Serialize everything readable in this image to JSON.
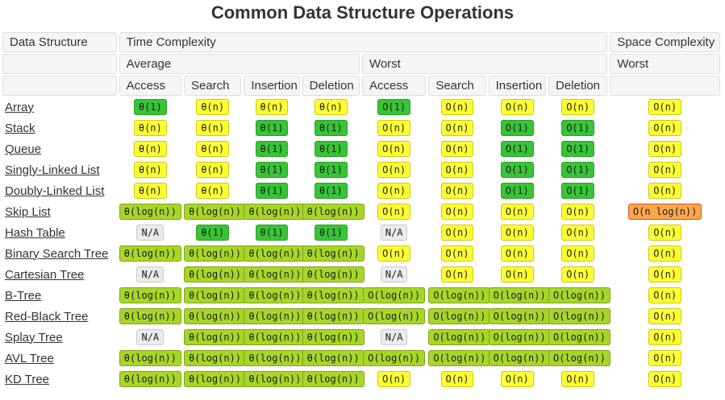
{
  "title": "Common Data Structure Operations",
  "colors": {
    "green": {
      "bg": "#38c437",
      "border": "#2d9e2c"
    },
    "yellowgreen": {
      "bg": "#a7d629",
      "border": "#7fa51a"
    },
    "yellow": {
      "bg": "#fdff32",
      "border": "#c9c921"
    },
    "orange": {
      "bg": "#fba84c",
      "border": "#e0472c"
    },
    "gray": {
      "bg": "#ebebeb",
      "border": "#cccccc"
    }
  },
  "table": {
    "header": {
      "data_structure": "Data Structure",
      "time_complexity": "Time Complexity",
      "space_complexity": "Space Complexity",
      "average": "Average",
      "worst": "Worst",
      "space_worst": "Worst",
      "operations": [
        "Access",
        "Search",
        "Insertion",
        "Deletion"
      ]
    },
    "rows": [
      {
        "label": "Array",
        "cells": [
          {
            "text": "θ(1)",
            "color": "green"
          },
          {
            "text": "θ(n)",
            "color": "yellow"
          },
          {
            "text": "θ(n)",
            "color": "yellow"
          },
          {
            "text": "θ(n)",
            "color": "yellow"
          },
          {
            "text": "O(1)",
            "color": "green"
          },
          {
            "text": "O(n)",
            "color": "yellow"
          },
          {
            "text": "O(n)",
            "color": "yellow"
          },
          {
            "text": "O(n)",
            "color": "yellow"
          },
          {
            "text": "O(n)",
            "color": "yellow"
          }
        ]
      },
      {
        "label": "Stack",
        "cells": [
          {
            "text": "θ(n)",
            "color": "yellow"
          },
          {
            "text": "θ(n)",
            "color": "yellow"
          },
          {
            "text": "θ(1)",
            "color": "green"
          },
          {
            "text": "θ(1)",
            "color": "green"
          },
          {
            "text": "O(n)",
            "color": "yellow"
          },
          {
            "text": "O(n)",
            "color": "yellow"
          },
          {
            "text": "O(1)",
            "color": "green"
          },
          {
            "text": "O(1)",
            "color": "green"
          },
          {
            "text": "O(n)",
            "color": "yellow"
          }
        ]
      },
      {
        "label": "Queue",
        "cells": [
          {
            "text": "θ(n)",
            "color": "yellow"
          },
          {
            "text": "θ(n)",
            "color": "yellow"
          },
          {
            "text": "θ(1)",
            "color": "green"
          },
          {
            "text": "θ(1)",
            "color": "green"
          },
          {
            "text": "O(n)",
            "color": "yellow"
          },
          {
            "text": "O(n)",
            "color": "yellow"
          },
          {
            "text": "O(1)",
            "color": "green"
          },
          {
            "text": "O(1)",
            "color": "green"
          },
          {
            "text": "O(n)",
            "color": "yellow"
          }
        ]
      },
      {
        "label": "Singly-Linked List",
        "cells": [
          {
            "text": "θ(n)",
            "color": "yellow"
          },
          {
            "text": "θ(n)",
            "color": "yellow"
          },
          {
            "text": "θ(1)",
            "color": "green"
          },
          {
            "text": "θ(1)",
            "color": "green"
          },
          {
            "text": "O(n)",
            "color": "yellow"
          },
          {
            "text": "O(n)",
            "color": "yellow"
          },
          {
            "text": "O(1)",
            "color": "green"
          },
          {
            "text": "O(1)",
            "color": "green"
          },
          {
            "text": "O(n)",
            "color": "yellow"
          }
        ]
      },
      {
        "label": "Doubly-Linked List",
        "cells": [
          {
            "text": "θ(n)",
            "color": "yellow"
          },
          {
            "text": "θ(n)",
            "color": "yellow"
          },
          {
            "text": "θ(1)",
            "color": "green"
          },
          {
            "text": "θ(1)",
            "color": "green"
          },
          {
            "text": "O(n)",
            "color": "yellow"
          },
          {
            "text": "O(n)",
            "color": "yellow"
          },
          {
            "text": "O(1)",
            "color": "green"
          },
          {
            "text": "O(1)",
            "color": "green"
          },
          {
            "text": "O(n)",
            "color": "yellow"
          }
        ]
      },
      {
        "label": "Skip List",
        "cells": [
          {
            "text": "θ(log(n))",
            "color": "yellowgreen"
          },
          {
            "text": "θ(log(n))",
            "color": "yellowgreen"
          },
          {
            "text": "θ(log(n))",
            "color": "yellowgreen"
          },
          {
            "text": "θ(log(n))",
            "color": "yellowgreen"
          },
          {
            "text": "O(n)",
            "color": "yellow"
          },
          {
            "text": "O(n)",
            "color": "yellow"
          },
          {
            "text": "O(n)",
            "color": "yellow"
          },
          {
            "text": "O(n)",
            "color": "yellow"
          },
          {
            "text": "O(n log(n))",
            "color": "orange"
          }
        ]
      },
      {
        "label": "Hash Table",
        "cells": [
          {
            "text": "N/A",
            "color": "gray"
          },
          {
            "text": "θ(1)",
            "color": "green"
          },
          {
            "text": "θ(1)",
            "color": "green"
          },
          {
            "text": "θ(1)",
            "color": "green"
          },
          {
            "text": "N/A",
            "color": "gray"
          },
          {
            "text": "O(n)",
            "color": "yellow"
          },
          {
            "text": "O(n)",
            "color": "yellow"
          },
          {
            "text": "O(n)",
            "color": "yellow"
          },
          {
            "text": "O(n)",
            "color": "yellow"
          }
        ]
      },
      {
        "label": "Binary Search Tree",
        "cells": [
          {
            "text": "θ(log(n))",
            "color": "yellowgreen"
          },
          {
            "text": "θ(log(n))",
            "color": "yellowgreen"
          },
          {
            "text": "θ(log(n))",
            "color": "yellowgreen"
          },
          {
            "text": "θ(log(n))",
            "color": "yellowgreen"
          },
          {
            "text": "O(n)",
            "color": "yellow"
          },
          {
            "text": "O(n)",
            "color": "yellow"
          },
          {
            "text": "O(n)",
            "color": "yellow"
          },
          {
            "text": "O(n)",
            "color": "yellow"
          },
          {
            "text": "O(n)",
            "color": "yellow"
          }
        ]
      },
      {
        "label": "Cartesian Tree",
        "cells": [
          {
            "text": "N/A",
            "color": "gray"
          },
          {
            "text": "θ(log(n))",
            "color": "yellowgreen"
          },
          {
            "text": "θ(log(n))",
            "color": "yellowgreen"
          },
          {
            "text": "θ(log(n))",
            "color": "yellowgreen"
          },
          {
            "text": "N/A",
            "color": "gray"
          },
          {
            "text": "O(n)",
            "color": "yellow"
          },
          {
            "text": "O(n)",
            "color": "yellow"
          },
          {
            "text": "O(n)",
            "color": "yellow"
          },
          {
            "text": "O(n)",
            "color": "yellow"
          }
        ]
      },
      {
        "label": "B-Tree",
        "cells": [
          {
            "text": "θ(log(n))",
            "color": "yellowgreen"
          },
          {
            "text": "θ(log(n))",
            "color": "yellowgreen"
          },
          {
            "text": "θ(log(n))",
            "color": "yellowgreen"
          },
          {
            "text": "θ(log(n))",
            "color": "yellowgreen"
          },
          {
            "text": "O(log(n))",
            "color": "yellowgreen"
          },
          {
            "text": "O(log(n))",
            "color": "yellowgreen"
          },
          {
            "text": "O(log(n))",
            "color": "yellowgreen"
          },
          {
            "text": "O(log(n))",
            "color": "yellowgreen"
          },
          {
            "text": "O(n)",
            "color": "yellow"
          }
        ]
      },
      {
        "label": "Red-Black Tree",
        "cells": [
          {
            "text": "θ(log(n))",
            "color": "yellowgreen"
          },
          {
            "text": "θ(log(n))",
            "color": "yellowgreen"
          },
          {
            "text": "θ(log(n))",
            "color": "yellowgreen"
          },
          {
            "text": "θ(log(n))",
            "color": "yellowgreen"
          },
          {
            "text": "O(log(n))",
            "color": "yellowgreen"
          },
          {
            "text": "O(log(n))",
            "color": "yellowgreen"
          },
          {
            "text": "O(log(n))",
            "color": "yellowgreen"
          },
          {
            "text": "O(log(n))",
            "color": "yellowgreen"
          },
          {
            "text": "O(n)",
            "color": "yellow"
          }
        ]
      },
      {
        "label": "Splay Tree",
        "cells": [
          {
            "text": "N/A",
            "color": "gray"
          },
          {
            "text": "θ(log(n))",
            "color": "yellowgreen"
          },
          {
            "text": "θ(log(n))",
            "color": "yellowgreen"
          },
          {
            "text": "θ(log(n))",
            "color": "yellowgreen"
          },
          {
            "text": "N/A",
            "color": "gray"
          },
          {
            "text": "O(log(n))",
            "color": "yellowgreen"
          },
          {
            "text": "O(log(n))",
            "color": "yellowgreen"
          },
          {
            "text": "O(log(n))",
            "color": "yellowgreen"
          },
          {
            "text": "O(n)",
            "color": "yellow"
          }
        ]
      },
      {
        "label": "AVL Tree",
        "cells": [
          {
            "text": "θ(log(n))",
            "color": "yellowgreen"
          },
          {
            "text": "θ(log(n))",
            "color": "yellowgreen"
          },
          {
            "text": "θ(log(n))",
            "color": "yellowgreen"
          },
          {
            "text": "θ(log(n))",
            "color": "yellowgreen"
          },
          {
            "text": "O(log(n))",
            "color": "yellowgreen"
          },
          {
            "text": "O(log(n))",
            "color": "yellowgreen"
          },
          {
            "text": "O(log(n))",
            "color": "yellowgreen"
          },
          {
            "text": "O(log(n))",
            "color": "yellowgreen"
          },
          {
            "text": "O(n)",
            "color": "yellow"
          }
        ]
      },
      {
        "label": "KD Tree",
        "cells": [
          {
            "text": "θ(log(n))",
            "color": "yellowgreen"
          },
          {
            "text": "θ(log(n))",
            "color": "yellowgreen"
          },
          {
            "text": "θ(log(n))",
            "color": "yellowgreen"
          },
          {
            "text": "θ(log(n))",
            "color": "yellowgreen"
          },
          {
            "text": "O(n)",
            "color": "yellow"
          },
          {
            "text": "O(n)",
            "color": "yellow"
          },
          {
            "text": "O(n)",
            "color": "yellow"
          },
          {
            "text": "O(n)",
            "color": "yellow"
          },
          {
            "text": "O(n)",
            "color": "yellow"
          }
        ]
      }
    ]
  }
}
